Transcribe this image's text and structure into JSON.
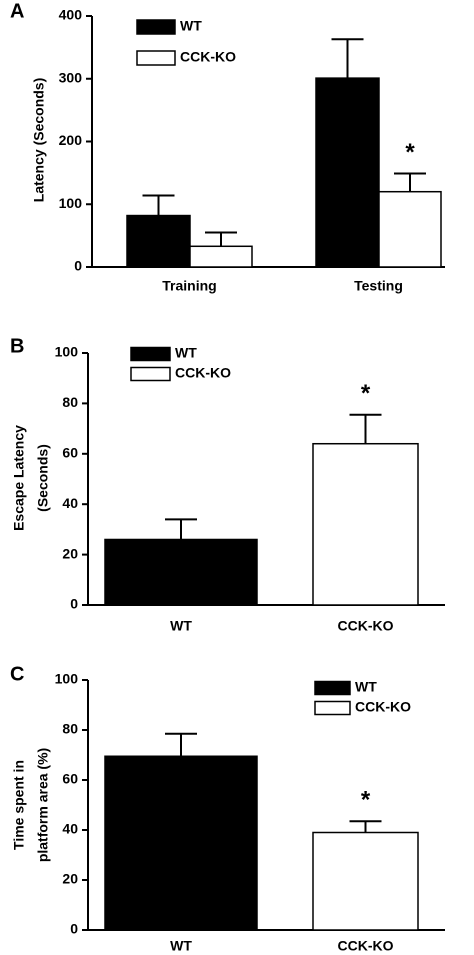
{
  "chart_data": [
    {
      "type": "grouped_bar",
      "panel_label": "A",
      "ylabel": [
        "Latency (Seconds)"
      ],
      "categories": [
        "Training",
        "Testing"
      ],
      "series": [
        {
          "name": "WT",
          "color": "#000000",
          "values": [
            82,
            301
          ],
          "errors": [
            32,
            62
          ]
        },
        {
          "name": "CCK-KO",
          "color": "#ffffff",
          "values": [
            33,
            120
          ],
          "errors": [
            22,
            29
          ]
        }
      ],
      "ylim": [
        0,
        400
      ],
      "yticks": [
        0,
        100,
        200,
        300,
        400
      ],
      "annotation": "*"
    },
    {
      "type": "bar",
      "panel_label": "B",
      "ylabel": [
        "Escape Latency",
        "(Seconds)"
      ],
      "categories": [
        "WT",
        "CCK-KO"
      ],
      "values": [
        26,
        64
      ],
      "errors": [
        8,
        11.5
      ],
      "colors": [
        "#000000",
        "#ffffff"
      ],
      "ylim": [
        0,
        100
      ],
      "yticks": [
        0,
        20,
        40,
        60,
        80,
        100
      ],
      "annotation": "*"
    },
    {
      "type": "bar",
      "panel_label": "C",
      "ylabel": [
        "Time spent in",
        "platform area (%)"
      ],
      "categories": [
        "WT",
        "CCK-KO"
      ],
      "values": [
        69.5,
        39
      ],
      "errors": [
        9,
        4.5
      ],
      "colors": [
        "#000000",
        "#ffffff"
      ],
      "ylim": [
        0,
        100
      ],
      "yticks": [
        0,
        20,
        40,
        60,
        80,
        100
      ],
      "annotation": "*"
    }
  ]
}
